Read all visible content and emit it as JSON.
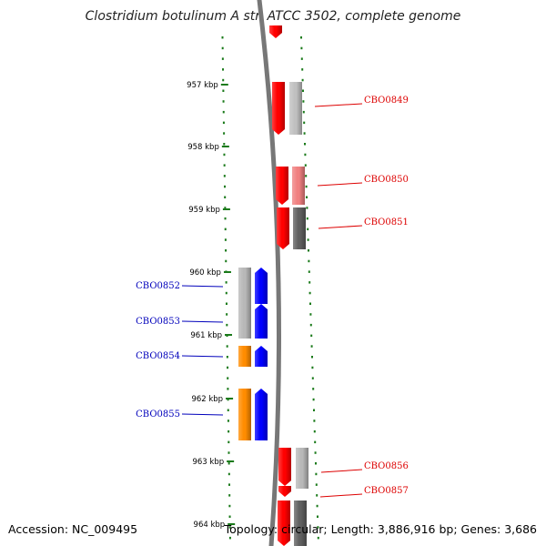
{
  "title": "Clostridium botulinum A str. ATCC 3502, complete genome",
  "accession_text": "Accession: NC_009495",
  "topology_text": "Topology: circular; Length: 3,886,916 bp; Genes: 3,686",
  "colors": {
    "forward_label": "#dd0000",
    "reverse_label": "#0000bb",
    "backbone": "#777777",
    "ticks": "#1a7a1a"
  },
  "kbp_labels": [
    "957 kbp",
    "958 kbp",
    "959 kbp",
    "960 kbp",
    "961 kbp",
    "962 kbp",
    "963 kbp",
    "964 kbp"
  ],
  "forward_genes": [
    {
      "label": "",
      "cds_color": "#ff0000",
      "feature_color": ""
    },
    {
      "label": "CBO0849",
      "cds_color": "#ff0000",
      "feature_color": "#c0c0c0"
    },
    {
      "label": "CBO0850",
      "cds_color": "#ff0000",
      "feature_color": "#f08080"
    },
    {
      "label": "CBO0851",
      "cds_color": "#ff0000",
      "feature_color": "#606060"
    },
    {
      "label": "CBO0856",
      "cds_color": "#ff0000",
      "feature_color": "#b8b8b8"
    },
    {
      "label": "CBO0857",
      "cds_color": "#ff0000",
      "feature_color": ""
    },
    {
      "label": "",
      "cds_color": "#ff0000",
      "feature_color": "#606060"
    }
  ],
  "reverse_genes": [
    {
      "label": "CBO0852",
      "cds_color": "#0000ff",
      "feature_color": "#b8b8b8"
    },
    {
      "label": "CBO0853",
      "cds_color": "#0000ff",
      "feature_color": "#b8b8b8"
    },
    {
      "label": "CBO0854",
      "cds_color": "#0000ff",
      "feature_color": "#ff8c00"
    },
    {
      "label": "CBO0855",
      "cds_color": "#0000ff",
      "feature_color": "#ff8c00"
    }
  ]
}
